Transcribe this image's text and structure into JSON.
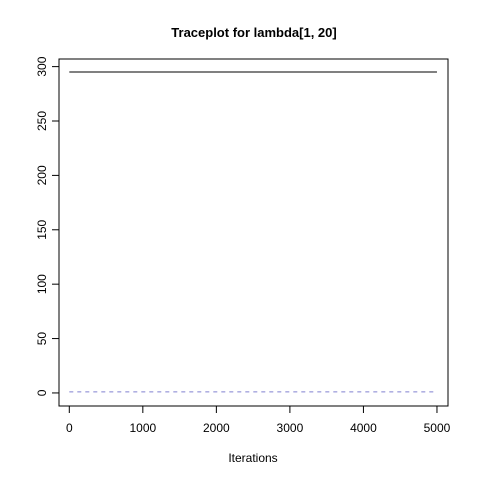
{
  "chart_data": {
    "type": "line",
    "title": "Traceplot for lambda[1, 20]",
    "xlabel": "Iterations",
    "ylabel": "",
    "xlim": [
      -140,
      5150
    ],
    "ylim": [
      -12,
      307
    ],
    "x_ticks": [
      0,
      1000,
      2000,
      3000,
      4000,
      5000
    ],
    "y_ticks": [
      0,
      50,
      100,
      150,
      200,
      250,
      300
    ],
    "grid": false,
    "colors": {
      "series_1": "#000000",
      "series_2": "#8080d0"
    },
    "series": [
      {
        "style": "solid",
        "x": [
          0,
          5000
        ],
        "values": [
          295,
          295
        ]
      },
      {
        "style": "dashed",
        "x": [
          0,
          5000
        ],
        "values": [
          1,
          1
        ]
      }
    ]
  }
}
